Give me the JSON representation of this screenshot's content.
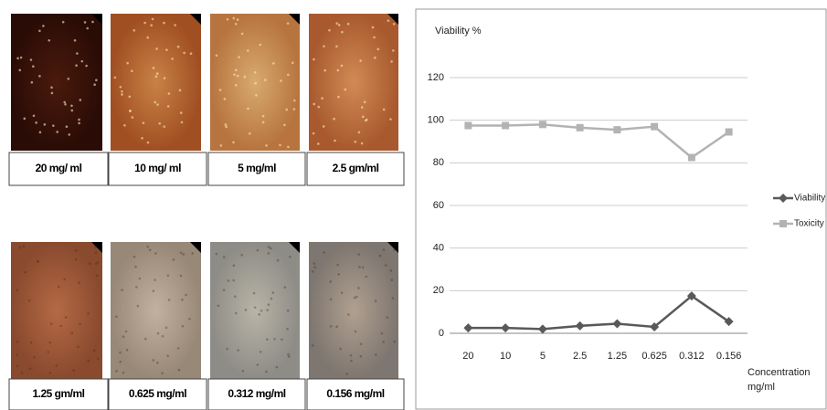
{
  "panels": [
    {
      "label": "20 mg/ ml"
    },
    {
      "label": "10 mg/ ml"
    },
    {
      "label": "5 mg/ml"
    },
    {
      "label": "2.5 gm/ml"
    },
    {
      "label": "1.25 gm/ml"
    },
    {
      "label": "0.625 mg/ml"
    },
    {
      "label": "0.312 mg/ml"
    },
    {
      "label": "0.156 mg/ml"
    }
  ],
  "chart_data": {
    "type": "line",
    "y_label": "Viability %",
    "x_label": "Concentration mg/ml",
    "categories": [
      "20",
      "10",
      "5",
      "2.5",
      "1.25",
      "0.625",
      "0.312",
      "0.156"
    ],
    "series": [
      {
        "name": "Viability",
        "color": "#595959",
        "marker": "diamond",
        "values": [
          2.5,
          2.5,
          2,
          3.5,
          4.5,
          3,
          17.5,
          5.5
        ]
      },
      {
        "name": "Toxicity",
        "color": "#b3b3b3",
        "marker": "square",
        "values": [
          97.5,
          97.5,
          98,
          96.5,
          95.5,
          97,
          82.5,
          94.5
        ]
      }
    ],
    "ylim": [
      0,
      120
    ],
    "yticks": [
      0,
      20,
      40,
      60,
      80,
      100,
      120
    ],
    "grid": true,
    "legend": "right"
  }
}
